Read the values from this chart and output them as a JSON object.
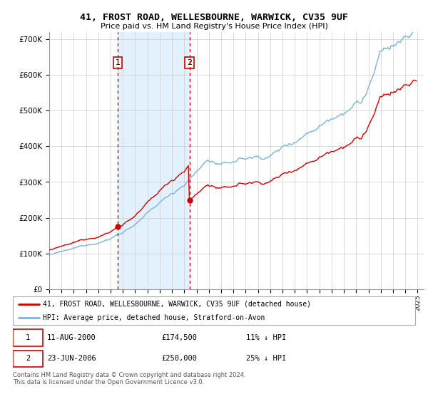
{
  "title": "41, FROST ROAD, WELLESBOURNE, WARWICK, CV35 9UF",
  "subtitle": "Price paid vs. HM Land Registry's House Price Index (HPI)",
  "background_color": "#ffffff",
  "plot_background": "#ffffff",
  "grid_color": "#cccccc",
  "hpi_color": "#7ab4d8",
  "price_color": "#cc0000",
  "span_color": "#ddeeff",
  "annotation1_price": 174500,
  "annotation2_price": 250000,
  "sale1_year": 2000.622,
  "sale2_year": 2006.472,
  "legend_entry1": "41, FROST ROAD, WELLESBOURNE, WARWICK, CV35 9UF (detached house)",
  "legend_entry2": "HPI: Average price, detached house, Stratford-on-Avon",
  "table_row1": [
    "1",
    "11-AUG-2000",
    "£174,500",
    "11% ↓ HPI"
  ],
  "table_row2": [
    "2",
    "23-JUN-2006",
    "£250,000",
    "25% ↓ HPI"
  ],
  "footnote": "Contains HM Land Registry data © Crown copyright and database right 2024.\nThis data is licensed under the Open Government Licence v3.0.",
  "ylim": [
    0,
    720000
  ],
  "yticks": [
    0,
    100000,
    200000,
    300000,
    400000,
    500000,
    600000,
    700000
  ],
  "ytick_labels": [
    "£0",
    "£100K",
    "£200K",
    "£300K",
    "£400K",
    "£500K",
    "£600K",
    "£700K"
  ],
  "xmin": 1995.0,
  "xmax": 2025.5
}
